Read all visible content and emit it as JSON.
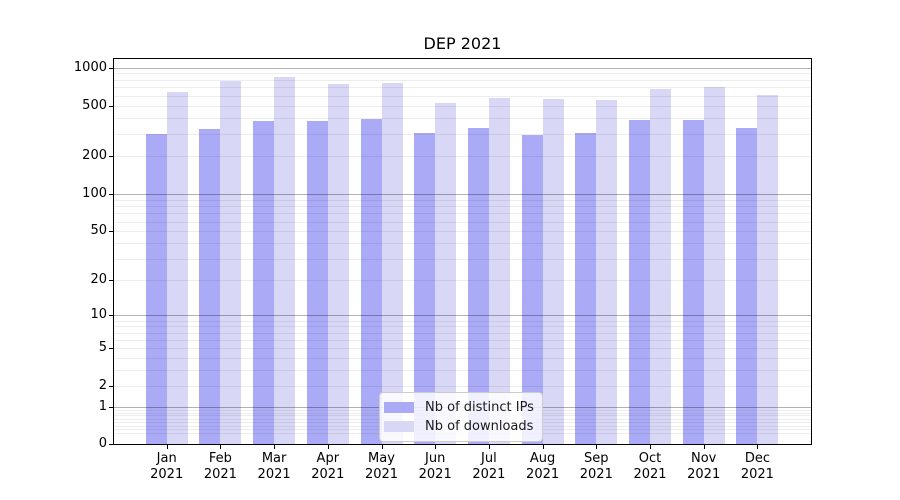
{
  "chart_data": {
    "type": "bar",
    "title": "DEP 2021",
    "x_tick_months": [
      "Jan",
      "Feb",
      "Mar",
      "Apr",
      "May",
      "Jun",
      "Jul",
      "Aug",
      "Sep",
      "Oct",
      "Nov",
      "Dec"
    ],
    "x_tick_year": "2021",
    "categories": [
      "Jan 2021",
      "Feb 2021",
      "Mar 2021",
      "Apr 2021",
      "May 2021",
      "Jun 2021",
      "Jul 2021",
      "Aug 2021",
      "Sep 2021",
      "Oct 2021",
      "Nov 2021",
      "Dec 2021"
    ],
    "series": [
      {
        "name": "Nb of distinct IPs",
        "key": "distinct-ips",
        "color": "#aaaaf6",
        "values": [
          297,
          325,
          380,
          376,
          390,
          303,
          332,
          293,
          303,
          386,
          382,
          330
        ]
      },
      {
        "name": "Nb of downloads",
        "key": "downloads",
        "color": "#d8d8f6",
        "values": [
          642,
          780,
          845,
          740,
          757,
          526,
          573,
          563,
          553,
          675,
          704,
          610
        ]
      }
    ],
    "yscale": "log(value+1)",
    "ylim": [
      0,
      1000
    ],
    "yticks": [
      0,
      1,
      2,
      5,
      10,
      20,
      50,
      100,
      200,
      500,
      1000
    ],
    "grid": true,
    "gridlines_over_bars": true,
    "legend_position": "lower center inside plot",
    "colors": {
      "background": "#ffffff",
      "axis": "#000000",
      "major_grid": "#b3b3b3",
      "minor_grid": "#ececec"
    }
  }
}
